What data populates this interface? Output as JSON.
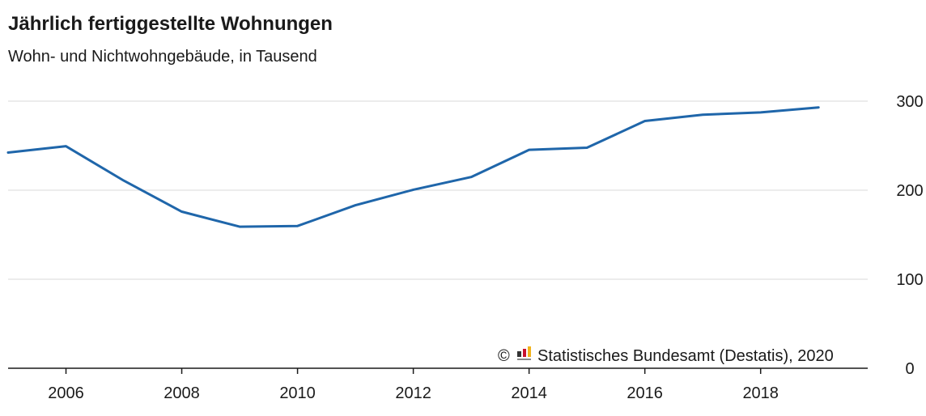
{
  "chart_data": {
    "type": "line",
    "title": "Jährlich fertiggestellte Wohnungen",
    "subtitle": "Wohn- und Nichtwohngebäude, in Tausend",
    "xlabel": "",
    "ylabel": "",
    "x": [
      2005,
      2006,
      2007,
      2008,
      2009,
      2010,
      2011,
      2012,
      2013,
      2014,
      2015,
      2016,
      2017,
      2018,
      2019
    ],
    "series": [
      {
        "values": [
          242.3,
          249.4,
          210.7,
          175.9,
          159.0,
          159.8,
          183.1,
          200.5,
          214.8,
          245.3,
          247.7,
          277.7,
          284.8,
          287.4,
          293.0
        ]
      }
    ],
    "xlim": [
      2005,
      2019.85
    ],
    "ylim": [
      0,
      300
    ],
    "x_ticks": [
      2006,
      2008,
      2010,
      2012,
      2014,
      2016,
      2018
    ],
    "y_ticks": [
      0,
      100,
      200,
      300
    ],
    "y_axis_position": "right",
    "grid": true,
    "colors": {
      "line": "#1f66aa",
      "grid": "#d9d9d9",
      "axis": "#1a1a1a",
      "logo_red": "#c8102e",
      "logo_gold": "#f2b21b",
      "logo_dark": "#333333"
    },
    "source": {
      "copyright": "©",
      "logo_icon": "destatis-logo-icon",
      "text": "Statistisches Bundesamt (Destatis), 2020"
    }
  }
}
